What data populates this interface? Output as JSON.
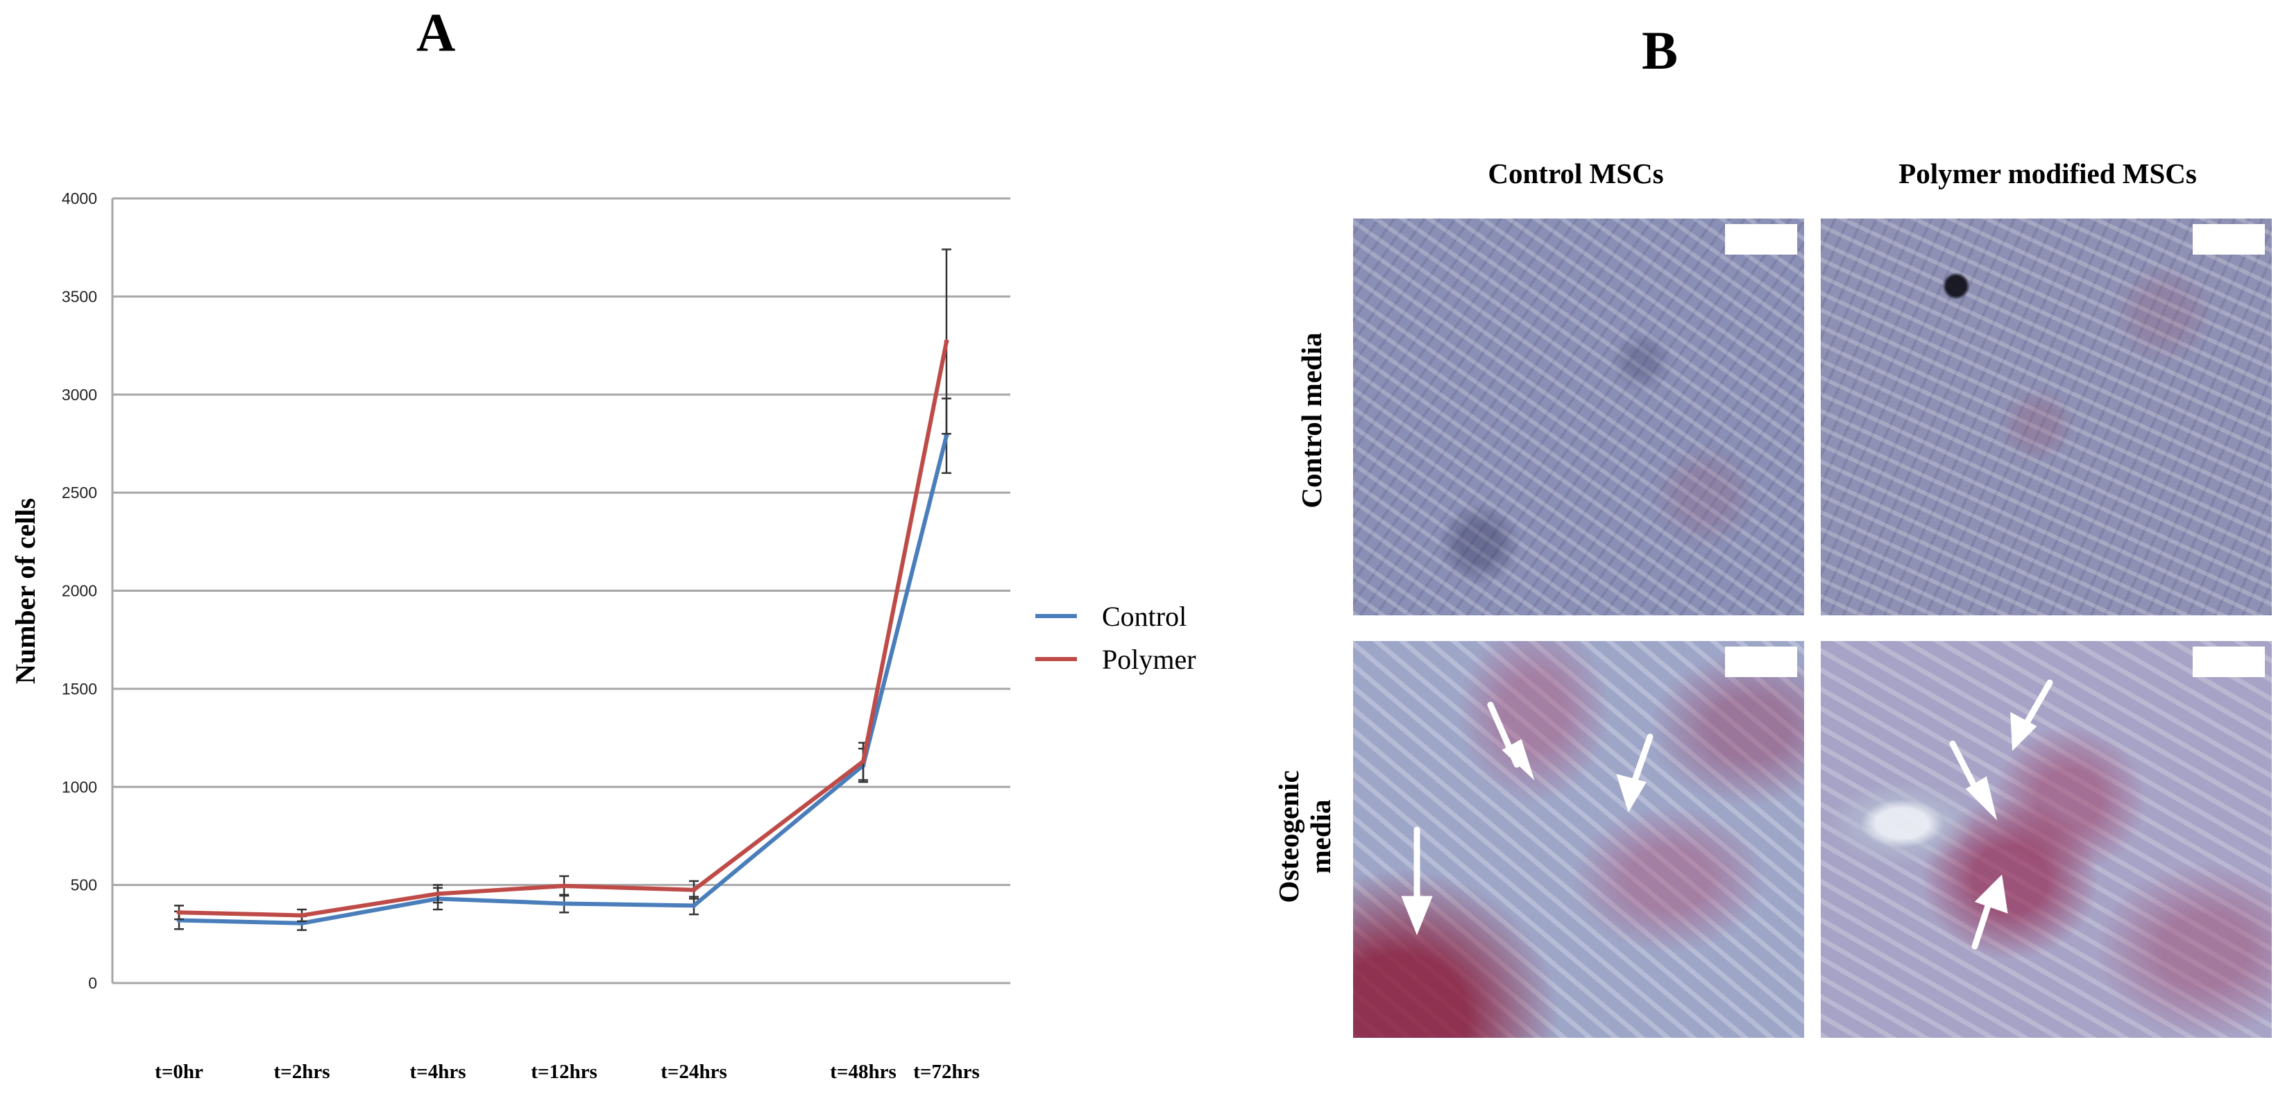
{
  "panels": {
    "a": "A",
    "b": "B"
  },
  "chart_data": {
    "type": "line",
    "title": "",
    "xlabel": "",
    "ylabel": "Number of cells",
    "ylim": [
      0,
      4000
    ],
    "yticks": [
      0,
      500,
      1000,
      1500,
      2000,
      2500,
      3000,
      3500,
      4000
    ],
    "categories": [
      "t=0hr",
      "t=2hrs",
      "t=4hrs",
      "t=12hrs",
      "t=24hrs",
      "t=48hrs",
      "t=72hrs"
    ],
    "grid": true,
    "legend_position": "right",
    "series": [
      {
        "name": "Control",
        "color": "#4a7ebb",
        "values": [
          320,
          305,
          430,
          405,
          395,
          1110,
          2790
        ],
        "errors": [
          45,
          35,
          55,
          45,
          45,
          85,
          190
        ]
      },
      {
        "name": "Polymer",
        "color": "#be4b48",
        "values": [
          360,
          345,
          455,
          495,
          475,
          1130,
          3270
        ],
        "errors": [
          35,
          30,
          45,
          50,
          45,
          95,
          470
        ]
      }
    ]
  },
  "micrographs": {
    "columns": [
      "Control MSCs",
      "Polymer modified MSCs"
    ],
    "rows": [
      {
        "label_lines": [
          "Control media"
        ]
      },
      {
        "label_lines": [
          "Osteogenic",
          "media"
        ]
      }
    ],
    "arrow_color": "#ffffff"
  }
}
